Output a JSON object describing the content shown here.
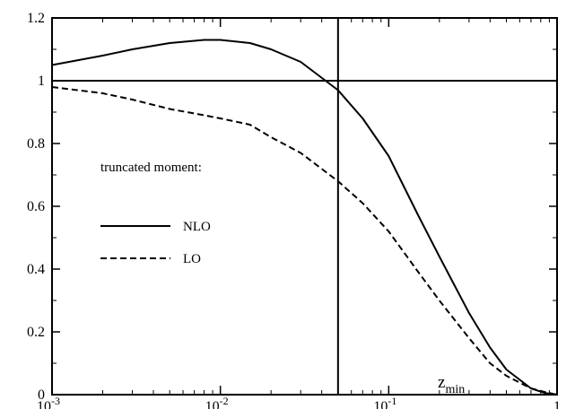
{
  "chart_data": {
    "type": "line",
    "xscale": "log",
    "xlim": [
      0.001,
      1
    ],
    "ylim": [
      0,
      1.2
    ],
    "xlabel": "z",
    "xlabel_sub": "min",
    "ylabel": "",
    "grid": false,
    "x_ticks": [
      {
        "value": 0.001,
        "base": "10",
        "exp": "-3"
      },
      {
        "value": 0.01,
        "base": "10",
        "exp": "-2"
      },
      {
        "value": 0.1,
        "base": "10",
        "exp": "-1"
      },
      {
        "value": 1,
        "base": "1",
        "exp": ""
      }
    ],
    "y_ticks": [
      {
        "value": 0,
        "label": "0"
      },
      {
        "value": 0.2,
        "label": "0.2"
      },
      {
        "value": 0.4,
        "label": "0.4"
      },
      {
        "value": 0.6,
        "label": "0.6"
      },
      {
        "value": 0.8,
        "label": "0.8"
      },
      {
        "value": 1,
        "label": "1"
      },
      {
        "value": 1.2,
        "label": "1.2"
      }
    ],
    "reference_lines": [
      {
        "orientation": "horizontal",
        "value": 1
      },
      {
        "orientation": "vertical",
        "value": 0.05
      }
    ],
    "legend": {
      "title": "truncated moment:",
      "placement": "center-left"
    },
    "series": [
      {
        "name": "NLO",
        "style": "solid",
        "x": [
          0.001,
          0.002,
          0.003,
          0.005,
          0.008,
          0.01,
          0.015,
          0.02,
          0.03,
          0.05,
          0.07,
          0.1,
          0.15,
          0.2,
          0.3,
          0.4,
          0.5,
          0.7,
          0.85,
          1
        ],
        "y": [
          1.05,
          1.08,
          1.1,
          1.12,
          1.13,
          1.13,
          1.12,
          1.1,
          1.06,
          0.97,
          0.88,
          0.76,
          0.57,
          0.44,
          0.26,
          0.15,
          0.08,
          0.02,
          0.005,
          0.0
        ]
      },
      {
        "name": "LO",
        "style": "dashed",
        "x": [
          0.001,
          0.002,
          0.003,
          0.005,
          0.008,
          0.01,
          0.015,
          0.02,
          0.03,
          0.05,
          0.07,
          0.1,
          0.15,
          0.2,
          0.3,
          0.4,
          0.5,
          0.7,
          0.85,
          1
        ],
        "y": [
          0.98,
          0.96,
          0.94,
          0.91,
          0.89,
          0.88,
          0.86,
          0.82,
          0.77,
          0.68,
          0.61,
          0.52,
          0.39,
          0.3,
          0.18,
          0.1,
          0.06,
          0.02,
          0.008,
          0.0
        ]
      }
    ]
  }
}
